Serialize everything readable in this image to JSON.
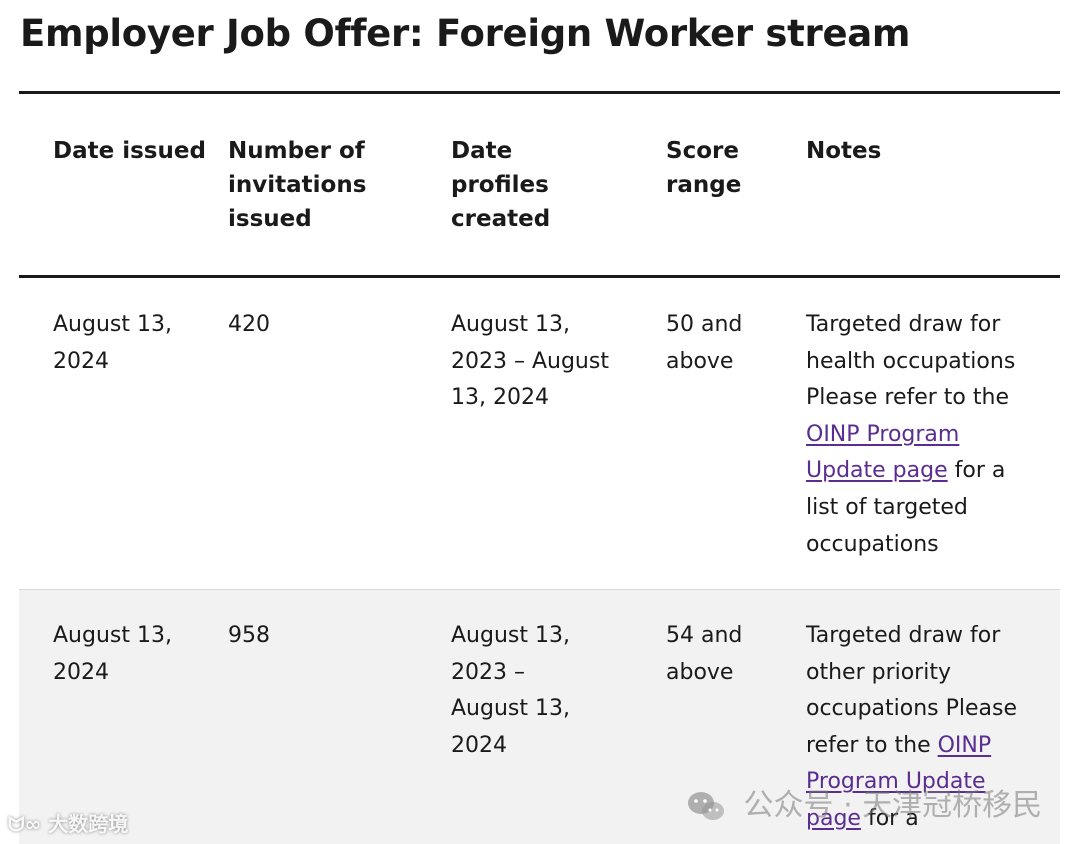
{
  "page_title": "Employer Job Offer: Foreign Worker stream",
  "table": {
    "headers": [
      "Date issued",
      "Number of invitations issued",
      "Date profiles created",
      "Score range",
      "Notes"
    ],
    "rows": [
      {
        "date_issued": "August 13, 2024",
        "invitations": "420",
        "profiles_created": "August 13, 2023 – August 13, 2024",
        "score_range": "50 and above",
        "notes_intro": "Targeted draw for health occupations Please refer to the",
        "notes_link": "OINP Program Update page",
        "notes_outro": "for a list of targeted occupations"
      },
      {
        "date_issued": "August 13, 2024",
        "invitations": "958",
        "profiles_created": "August 13, 2023 – August 13, 2024",
        "score_range": "54 and above",
        "notes_intro": "Targeted draw for other priority occupations Please refer to the",
        "notes_link": "OINP Program Update page",
        "notes_outro": "for a"
      }
    ]
  },
  "watermarks": {
    "left": "大数跨境",
    "right": "公众号 · 天津冠桥移民",
    "right_icon": "wechat-icon",
    "left_icon": "logo-icon"
  }
}
